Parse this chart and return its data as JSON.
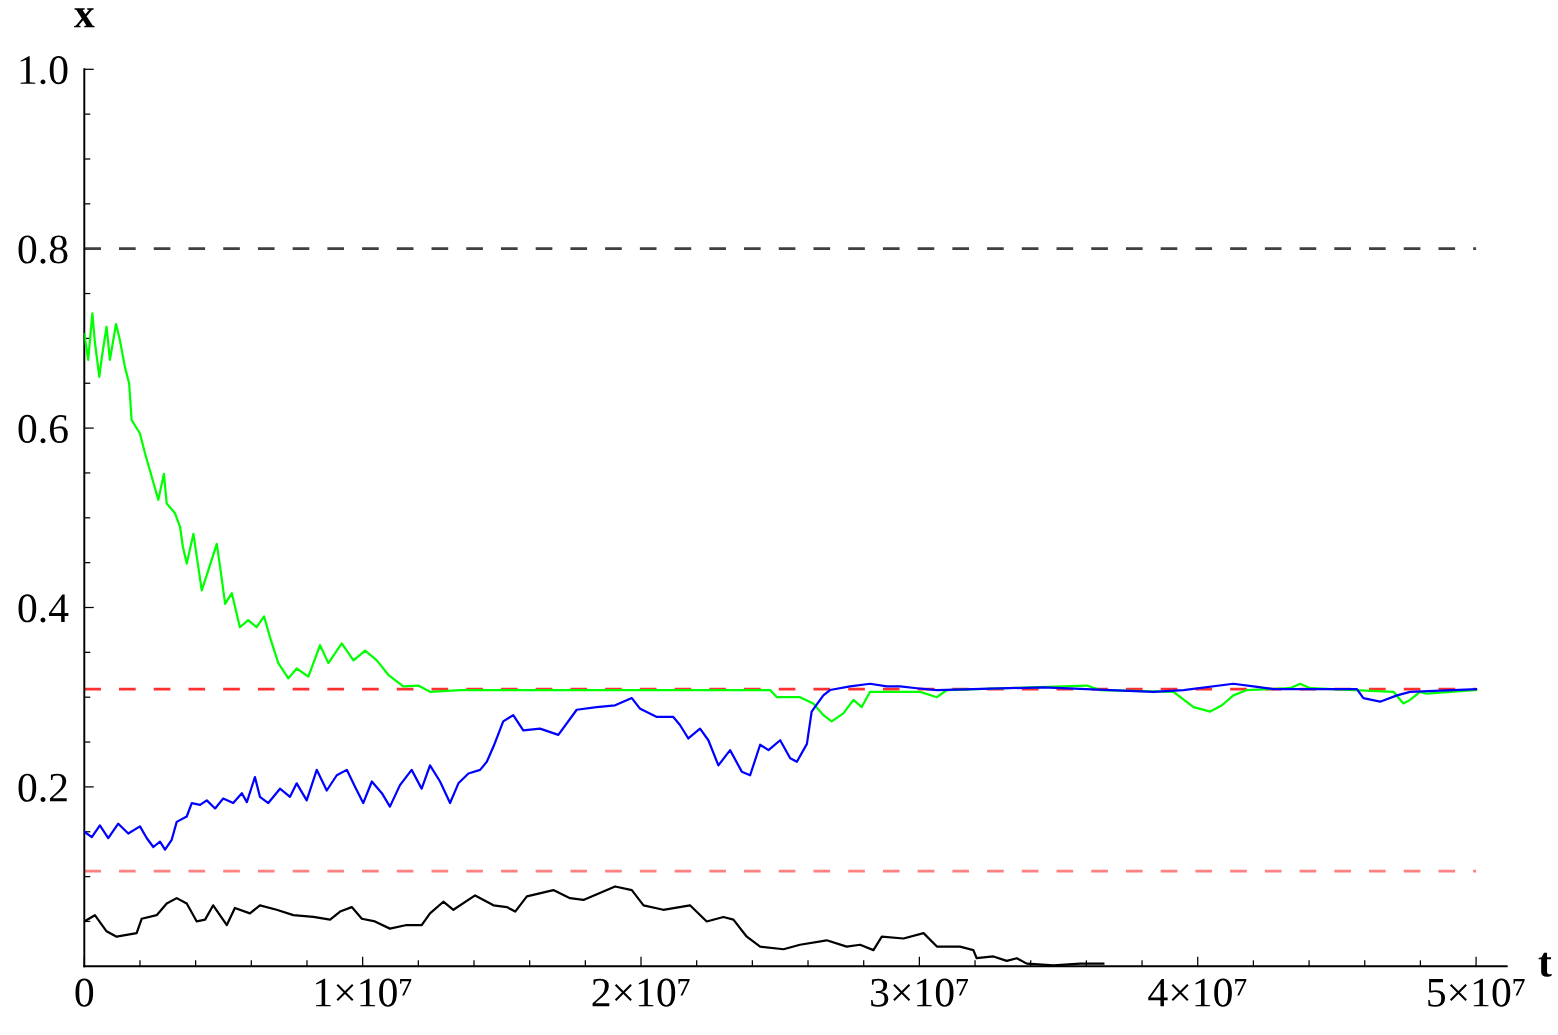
{
  "chart_data": {
    "type": "line",
    "xlabel": "t",
    "ylabel": "x",
    "xlim": [
      0,
      51100000
    ],
    "ylim": [
      0,
      1.0
    ],
    "xticks": [
      0,
      {
        "value": 2000000,
        "label": null
      },
      {
        "value": 4000000,
        "label": null
      },
      {
        "value": 6000000,
        "label": null
      },
      {
        "value": 8000000,
        "label": null
      },
      {
        "value": 10000000,
        "label": "1×10⁷"
      },
      {
        "value": 12000000,
        "label": null
      },
      {
        "value": 14000000,
        "label": null
      },
      {
        "value": 16000000,
        "label": null
      },
      {
        "value": 18000000,
        "label": null
      },
      {
        "value": 20000000,
        "label": "2×10⁷"
      },
      {
        "value": 22000000,
        "label": null
      },
      {
        "value": 24000000,
        "label": null
      },
      {
        "value": 26000000,
        "label": null
      },
      {
        "value": 28000000,
        "label": null
      },
      {
        "value": 30000000,
        "label": "3×10⁷"
      },
      {
        "value": 32000000,
        "label": null
      },
      {
        "value": 34000000,
        "label": null
      },
      {
        "value": 36000000,
        "label": null
      },
      {
        "value": 38000000,
        "label": null
      },
      {
        "value": 40000000,
        "label": "4×10⁷"
      },
      {
        "value": 42000000,
        "label": null
      },
      {
        "value": 44000000,
        "label": null
      },
      {
        "value": 46000000,
        "label": null
      },
      {
        "value": 48000000,
        "label": null
      },
      {
        "value": 50000000,
        "label": "5×10⁷"
      }
    ],
    "yticks": [
      {
        "value": 0.05,
        "label": null
      },
      {
        "value": 0.1,
        "label": null
      },
      {
        "value": 0.15,
        "label": null
      },
      0.2,
      {
        "value": 0.25,
        "label": null
      },
      {
        "value": 0.3,
        "label": null
      },
      {
        "value": 0.35,
        "label": null
      },
      0.4,
      {
        "value": 0.45,
        "label": null
      },
      {
        "value": 0.5,
        "label": null
      },
      {
        "value": 0.55,
        "label": null
      },
      0.6,
      {
        "value": 0.65,
        "label": null
      },
      {
        "value": 0.7,
        "label": null
      },
      {
        "value": 0.75,
        "label": null
      },
      0.8,
      {
        "value": 0.85,
        "label": null
      },
      {
        "value": 0.9,
        "label": null
      },
      {
        "value": 0.95,
        "label": null
      },
      {
        "value": 1.0,
        "label": "1.0"
      }
    ],
    "ref_lines": [
      {
        "axis": "y",
        "value": 0.8,
        "color": "#404040",
        "line_style": "dashed"
      },
      {
        "axis": "y",
        "value": 0.309,
        "color": "#ff3030",
        "line_style": "dashed"
      },
      {
        "axis": "y",
        "value": 0.106,
        "color": "#ff8080",
        "line_style": "dashed"
      }
    ],
    "series": [
      {
        "color": "#00ff00",
        "x": [
          0,
          140000,
          290000,
          380000,
          540000,
          630000,
          800000,
          920000,
          1140000,
          1280000,
          1460000,
          1610000,
          1700000,
          2000000,
          2180000,
          2420000,
          2660000,
          2860000,
          2960000,
          3260000,
          3440000,
          3540000,
          3680000,
          3920000,
          4220000,
          4460000,
          4760000,
          4880000,
          5060000,
          5300000,
          5590000,
          5890000,
          6190000,
          6460000,
          6670000,
          6970000,
          7330000,
          7630000,
          8050000,
          8470000,
          8770000,
          9250000,
          9670000,
          10090000,
          10510000,
          10920000,
          11460000,
          12000000,
          12420000,
          13500000,
          18530000,
          24640000,
          24880000,
          25710000,
          26190000,
          26550000,
          26850000,
          27270000,
          27630000,
          27930000,
          28230000,
          29070000,
          30030000,
          30630000,
          30990000,
          36020000,
          36490000,
          39130000,
          39850000,
          40450000,
          40870000,
          41280000,
          41770000,
          43320000,
          43680000,
          44040000,
          47030000,
          47390000,
          47630000,
          47990000,
          48230000,
          50000000
        ],
        "values": [
          0.705,
          0.676,
          0.728,
          0.696,
          0.657,
          0.679,
          0.713,
          0.676,
          0.716,
          0.698,
          0.668,
          0.65,
          0.609,
          0.594,
          0.572,
          0.546,
          0.52,
          0.549,
          0.516,
          0.505,
          0.49,
          0.468,
          0.449,
          0.482,
          0.419,
          0.442,
          0.471,
          0.445,
          0.404,
          0.416,
          0.378,
          0.386,
          0.378,
          0.39,
          0.367,
          0.338,
          0.321,
          0.332,
          0.323,
          0.358,
          0.338,
          0.36,
          0.341,
          0.352,
          0.341,
          0.325,
          0.312,
          0.313,
          0.306,
          0.308,
          0.308,
          0.308,
          0.3,
          0.3,
          0.293,
          0.28,
          0.273,
          0.282,
          0.297,
          0.289,
          0.306,
          0.306,
          0.306,
          0.3,
          0.308,
          0.313,
          0.308,
          0.306,
          0.289,
          0.284,
          0.291,
          0.302,
          0.308,
          0.31,
          0.315,
          0.31,
          0.306,
          0.293,
          0.297,
          0.306,
          0.304,
          0.308
        ]
      },
      {
        "color": "#0000ff",
        "x": [
          0,
          270000,
          560000,
          860000,
          1220000,
          1580000,
          2000000,
          2240000,
          2480000,
          2720000,
          2900000,
          3140000,
          3320000,
          3680000,
          3860000,
          4160000,
          4400000,
          4700000,
          4990000,
          5350000,
          5660000,
          5840000,
          6130000,
          6310000,
          6610000,
          7030000,
          7390000,
          7630000,
          7990000,
          8350000,
          8710000,
          9070000,
          9430000,
          9730000,
          10020000,
          10330000,
          10690000,
          10980000,
          11340000,
          11760000,
          12120000,
          12420000,
          12780000,
          13140000,
          13440000,
          13800000,
          14220000,
          14460000,
          14700000,
          15050000,
          15410000,
          15770000,
          16370000,
          17030000,
          17690000,
          18410000,
          19070000,
          19670000,
          19970000,
          20570000,
          21160000,
          21400000,
          21700000,
          22120000,
          22420000,
          22780000,
          23200000,
          23620000,
          23920000,
          24280000,
          24580000,
          25000000,
          25360000,
          25600000,
          25960000,
          26130000,
          26550000,
          26790000,
          27510000,
          28230000,
          28830000,
          29310000,
          29910000,
          30630000,
          34460000,
          38410000,
          39490000,
          41280000,
          42000000,
          42720000,
          45720000,
          45950000,
          46550000,
          47160000,
          47630000,
          50000000
        ],
        "values": [
          0.15,
          0.144,
          0.157,
          0.143,
          0.159,
          0.148,
          0.156,
          0.143,
          0.133,
          0.139,
          0.13,
          0.141,
          0.161,
          0.167,
          0.182,
          0.18,
          0.185,
          0.176,
          0.187,
          0.182,
          0.193,
          0.183,
          0.211,
          0.189,
          0.182,
          0.198,
          0.189,
          0.204,
          0.185,
          0.219,
          0.196,
          0.213,
          0.219,
          0.2,
          0.182,
          0.206,
          0.193,
          0.178,
          0.202,
          0.219,
          0.198,
          0.224,
          0.206,
          0.182,
          0.204,
          0.215,
          0.219,
          0.228,
          0.245,
          0.273,
          0.28,
          0.263,
          0.265,
          0.258,
          0.286,
          0.289,
          0.291,
          0.299,
          0.287,
          0.278,
          0.278,
          0.269,
          0.254,
          0.265,
          0.252,
          0.224,
          0.241,
          0.217,
          0.213,
          0.247,
          0.241,
          0.252,
          0.232,
          0.228,
          0.248,
          0.284,
          0.302,
          0.308,
          0.312,
          0.315,
          0.312,
          0.312,
          0.31,
          0.308,
          0.311,
          0.306,
          0.308,
          0.315,
          0.312,
          0.309,
          0.309,
          0.299,
          0.295,
          0.302,
          0.306,
          0.309
        ]
      },
      {
        "color": "#000000",
        "x": [
          0,
          380000,
          800000,
          1160000,
          1520000,
          1880000,
          2060000,
          2600000,
          2960000,
          3320000,
          3680000,
          4040000,
          4340000,
          4630000,
          5120000,
          5410000,
          5950000,
          6310000,
          6910000,
          7510000,
          8230000,
          8830000,
          9190000,
          9610000,
          9970000,
          10440000,
          10980000,
          11580000,
          12120000,
          12420000,
          12900000,
          13260000,
          14040000,
          14700000,
          15180000,
          15480000,
          15900000,
          16850000,
          17450000,
          17930000,
          19070000,
          19670000,
          20090000,
          20800000,
          21760000,
          22360000,
          22960000,
          23320000,
          23800000,
          24280000,
          25120000,
          25710000,
          26670000,
          27390000,
          27870000,
          28350000,
          28650000,
          29430000,
          30150000,
          30630000,
          31460000,
          31940000,
          32060000,
          32660000,
          33140000,
          33500000,
          33860000,
          34820000,
          35780000,
          36610000
        ],
        "values": [
          0.05,
          0.057,
          0.039,
          0.033,
          0.035,
          0.037,
          0.053,
          0.057,
          0.07,
          0.076,
          0.07,
          0.05,
          0.052,
          0.068,
          0.046,
          0.065,
          0.059,
          0.068,
          0.063,
          0.057,
          0.055,
          0.052,
          0.061,
          0.066,
          0.053,
          0.05,
          0.042,
          0.046,
          0.046,
          0.059,
          0.072,
          0.063,
          0.079,
          0.068,
          0.066,
          0.061,
          0.078,
          0.085,
          0.076,
          0.074,
          0.089,
          0.085,
          0.068,
          0.063,
          0.068,
          0.05,
          0.055,
          0.052,
          0.033,
          0.022,
          0.019,
          0.024,
          0.029,
          0.022,
          0.024,
          0.018,
          0.033,
          0.031,
          0.037,
          0.022,
          0.022,
          0.018,
          0.009,
          0.011,
          0.006,
          0.009,
          0.003,
          0.001,
          0.003,
          0.003
        ]
      }
    ]
  }
}
